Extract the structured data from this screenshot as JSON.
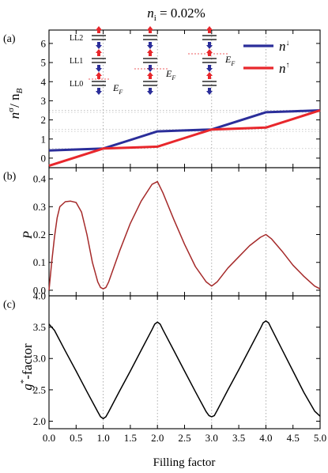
{
  "figure": {
    "title_main": "n",
    "title_sub": "i",
    "title_rest": " = 0.02%",
    "xlabel": "Filling factor"
  },
  "chart_data": [
    {
      "type": "line",
      "panel_label": "(a)",
      "ylabel": {
        "base": "n",
        "sup": "σ",
        "rest": "/ n",
        "sub": "B"
      },
      "xlim": [
        0,
        5
      ],
      "ylim": [
        -0.5,
        6.7
      ],
      "xticks": [
        0,
        0.5,
        1,
        1.5,
        2,
        2.5,
        3,
        3.5,
        4,
        4.5,
        5
      ],
      "yticks": [
        0,
        1,
        2,
        3,
        4,
        5,
        6
      ],
      "legend_position": "top-right",
      "series": [
        {
          "name": "n↓",
          "name_base": "n",
          "name_sup": "↓",
          "color": "#2b2e9a",
          "x": [
            0,
            0.5,
            1,
            1.5,
            2,
            2.5,
            3,
            3.5,
            4,
            4.5,
            5
          ],
          "y": [
            0.4,
            0.45,
            0.5,
            0.95,
            1.4,
            1.45,
            1.5,
            1.95,
            2.4,
            2.45,
            2.5
          ]
        },
        {
          "name": "n↑",
          "name_base": "n",
          "name_sup": "↑",
          "color": "#e8272c",
          "x": [
            0,
            0.5,
            1,
            1.5,
            2,
            2.5,
            3,
            3.5,
            4,
            4.5,
            5
          ],
          "y": [
            -0.4,
            0.05,
            0.5,
            0.55,
            0.6,
            1.05,
            1.5,
            1.55,
            1.6,
            2.05,
            2.5
          ]
        }
      ],
      "inset": {
        "level_labels": [
          "LL2",
          "LL1",
          "LL0"
        ],
        "fermi_label": "E",
        "fermi_sub": "F",
        "up_color": "#e8272c",
        "down_color": "#2b2e9a"
      }
    },
    {
      "type": "line",
      "panel_label": "(b)",
      "ylabel": "P",
      "xlim": [
        0,
        5
      ],
      "ylim": [
        -0.02,
        0.44
      ],
      "xticks": [
        0,
        0.5,
        1,
        1.5,
        2,
        2.5,
        3,
        3.5,
        4,
        4.5,
        5
      ],
      "yticks": [
        0.0,
        0.1,
        0.2,
        0.3,
        0.4
      ],
      "ytick_labels": [
        "0.0",
        "0.1",
        "0.2",
        "0.3",
        "0.4"
      ],
      "series": [
        {
          "color": "#a52a2a",
          "x": [
            0,
            0.05,
            0.1,
            0.15,
            0.2,
            0.3,
            0.4,
            0.5,
            0.6,
            0.7,
            0.8,
            0.9,
            0.95,
            1.0,
            1.05,
            1.1,
            1.3,
            1.5,
            1.7,
            1.9,
            2.0,
            2.1,
            2.3,
            2.5,
            2.7,
            2.9,
            3.0,
            3.1,
            3.3,
            3.5,
            3.7,
            3.9,
            4.0,
            4.1,
            4.3,
            4.5,
            4.7,
            4.9,
            5.0
          ],
          "y": [
            0.0,
            0.1,
            0.19,
            0.26,
            0.3,
            0.318,
            0.32,
            0.315,
            0.28,
            0.2,
            0.1,
            0.03,
            0.01,
            0.005,
            0.01,
            0.03,
            0.14,
            0.24,
            0.32,
            0.38,
            0.39,
            0.35,
            0.255,
            0.165,
            0.085,
            0.03,
            0.015,
            0.03,
            0.08,
            0.12,
            0.16,
            0.19,
            0.2,
            0.185,
            0.14,
            0.09,
            0.05,
            0.015,
            0.005
          ]
        }
      ]
    },
    {
      "type": "line",
      "panel_label": "(c)",
      "ylabel": {
        "base": "g",
        "sup": "*",
        "rest": "-factor"
      },
      "xlim": [
        0,
        5
      ],
      "ylim": [
        1.88,
        4.0
      ],
      "xticks": [
        0,
        0.5,
        1,
        1.5,
        2,
        2.5,
        3,
        3.5,
        4,
        4.5,
        5
      ],
      "xtick_labels": [
        "0.0",
        "0.5",
        "1.0",
        "1.5",
        "2.0",
        "2.5",
        "3.0",
        "3.5",
        "4.0",
        "4.5",
        "5.0"
      ],
      "yticks": [
        2.0,
        2.5,
        3.0,
        3.5,
        4.0
      ],
      "ytick_labels": [
        "2.0",
        "2.5",
        "3.0",
        "3.5",
        "4.0"
      ],
      "series": [
        {
          "color": "#000000",
          "x": [
            0,
            0.1,
            0.3,
            0.5,
            0.7,
            0.9,
            0.95,
            1.0,
            1.05,
            1.1,
            1.3,
            1.5,
            1.7,
            1.9,
            1.95,
            2.0,
            2.05,
            2.1,
            2.3,
            2.5,
            2.7,
            2.9,
            2.95,
            3.0,
            3.05,
            3.1,
            3.3,
            3.5,
            3.7,
            3.9,
            3.95,
            4.0,
            4.05,
            4.1,
            4.3,
            4.5,
            4.7,
            4.9,
            5.0
          ],
          "y": [
            3.55,
            3.45,
            3.12,
            2.8,
            2.47,
            2.15,
            2.07,
            2.04,
            2.07,
            2.15,
            2.48,
            2.8,
            3.13,
            3.46,
            3.55,
            3.58,
            3.55,
            3.46,
            3.13,
            2.8,
            2.47,
            2.15,
            2.09,
            2.07,
            2.09,
            2.17,
            2.5,
            2.82,
            3.15,
            3.48,
            3.57,
            3.6,
            3.57,
            3.48,
            3.14,
            2.8,
            2.46,
            2.16,
            2.08
          ]
        }
      ]
    }
  ]
}
